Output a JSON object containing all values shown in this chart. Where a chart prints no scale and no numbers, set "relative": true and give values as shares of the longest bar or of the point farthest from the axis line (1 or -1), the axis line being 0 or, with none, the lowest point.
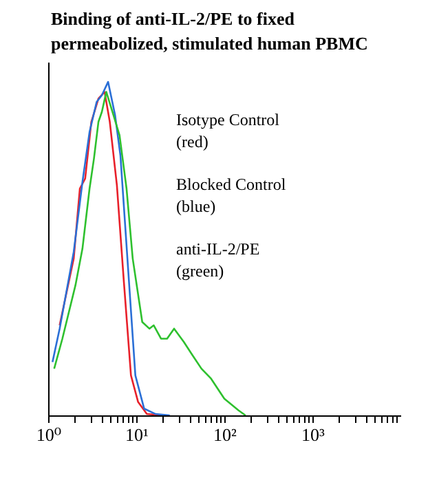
{
  "chart_data": {
    "type": "line",
    "relative": true,
    "title": "Binding of anti-IL-2/PE to fixed\npermeabolized, stimulated human PBMC",
    "annotations": [
      "Isotype Control\n(red)",
      "Blocked Control\n(blue)",
      "anti-IL-2/PE\n(green)"
    ],
    "log": "x",
    "xlim": [
      1,
      10000
    ],
    "xticks": [
      {
        "value": 1,
        "label": "10⁰"
      },
      {
        "value": 2,
        "label": null
      },
      {
        "value": 3,
        "label": null
      },
      {
        "value": 4,
        "label": null
      },
      {
        "value": 5,
        "label": null
      },
      {
        "value": 6,
        "label": null
      },
      {
        "value": 7,
        "label": null
      },
      {
        "value": 8,
        "label": null
      },
      {
        "value": 9,
        "label": null
      },
      {
        "value": 10,
        "label": "10¹"
      },
      {
        "value": 20,
        "label": null
      },
      {
        "value": 30,
        "label": null
      },
      {
        "value": 40,
        "label": null
      },
      {
        "value": 50,
        "label": null
      },
      {
        "value": 60,
        "label": null
      },
      {
        "value": 70,
        "label": null
      },
      {
        "value": 80,
        "label": null
      },
      {
        "value": 90,
        "label": null
      },
      {
        "value": 100,
        "label": "10²"
      },
      {
        "value": 200,
        "label": null
      },
      {
        "value": 300,
        "label": null
      },
      {
        "value": 400,
        "label": null
      },
      {
        "value": 500,
        "label": null
      },
      {
        "value": 600,
        "label": null
      },
      {
        "value": 700,
        "label": null
      },
      {
        "value": 800,
        "label": null
      },
      {
        "value": 900,
        "label": null
      },
      {
        "value": 1000,
        "label": "10³"
      },
      {
        "value": 2000,
        "label": null
      },
      {
        "value": 3000,
        "label": null
      },
      {
        "value": 4000,
        "label": null
      },
      {
        "value": 5000,
        "label": null
      },
      {
        "value": 6000,
        "label": null
      },
      {
        "value": 7000,
        "label": null
      },
      {
        "value": 8000,
        "label": null
      },
      {
        "value": 9000,
        "label": null
      }
    ],
    "grid": false,
    "legend": false,
    "series": [
      {
        "color": "#e8202a",
        "x": [
          1.35,
          1.95,
          2.29,
          2.63,
          3.09,
          3.72,
          4.37,
          5.01,
          6.03,
          7.24,
          8.71,
          10.5,
          13.2,
          21.4
        ],
        "values": [
          0.27,
          0.47,
          0.68,
          0.71,
          0.88,
          0.95,
          0.97,
          0.88,
          0.69,
          0.4,
          0.12,
          0.04,
          0.004,
          0
        ]
      },
      {
        "color": "#2a6fd6",
        "x": [
          1.12,
          1.35,
          1.95,
          2.45,
          2.95,
          3.55,
          4.07,
          4.79,
          5.75,
          6.61,
          8.13,
          9.77,
          12.3,
          16.6,
          24.0
        ],
        "values": [
          0.16,
          0.26,
          0.49,
          0.7,
          0.85,
          0.94,
          0.96,
          1.0,
          0.9,
          0.78,
          0.43,
          0.12,
          0.02,
          0.004,
          0
        ]
      },
      {
        "color": "#2ec02e",
        "x": [
          1.17,
          1.45,
          2.04,
          2.45,
          2.95,
          3.31,
          3.72,
          4.07,
          4.57,
          5.37,
          6.46,
          7.76,
          9.12,
          11.7,
          14.1,
          15.8,
          19.1,
          22.4,
          26.9,
          34.7,
          43.6,
          55.0,
          70.8,
          100,
          145,
          174
        ],
        "values": [
          0.14,
          0.23,
          0.39,
          0.5,
          0.68,
          0.77,
          0.88,
          0.91,
          0.97,
          0.91,
          0.84,
          0.68,
          0.47,
          0.28,
          0.26,
          0.27,
          0.23,
          0.23,
          0.26,
          0.22,
          0.18,
          0.14,
          0.11,
          0.05,
          0.015,
          0
        ]
      }
    ]
  }
}
